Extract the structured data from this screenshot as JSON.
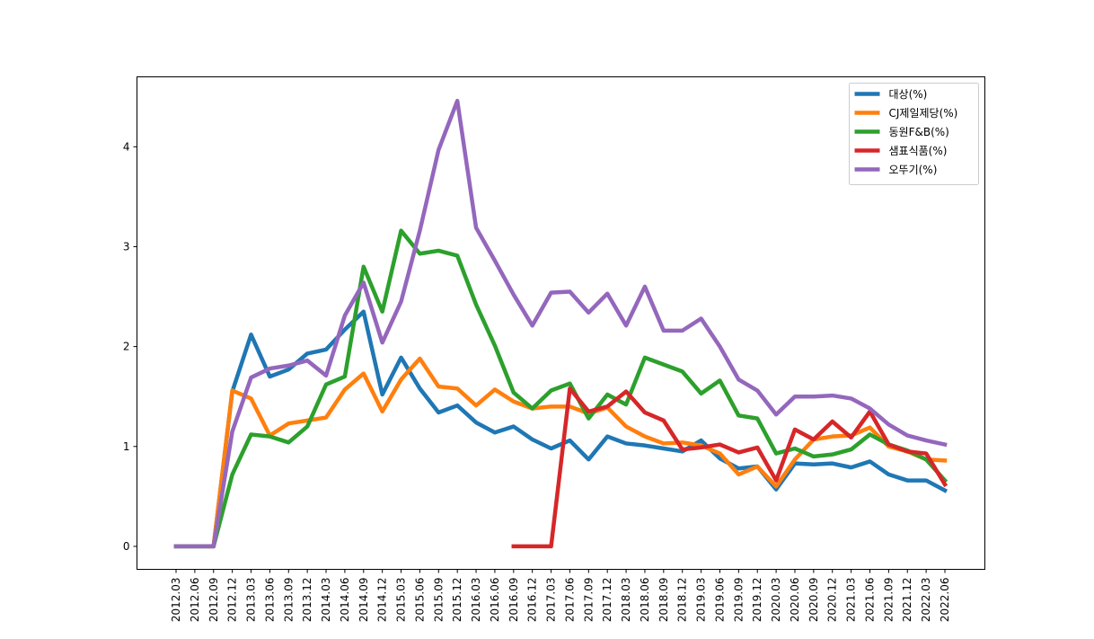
{
  "chart_data": {
    "type": "line",
    "title": "",
    "xlabel": "",
    "ylabel": "",
    "ylim": [
      -0.23,
      4.7
    ],
    "yticks": [
      0,
      1,
      2,
      3,
      4
    ],
    "grid": false,
    "legend_position": "top-right",
    "categories": [
      "2012.03",
      "2012.06",
      "2012.09",
      "2012.12",
      "2013.03",
      "2013.06",
      "2013.09",
      "2013.12",
      "2014.03",
      "2014.06",
      "2014.09",
      "2014.12",
      "2015.03",
      "2015.06",
      "2015.09",
      "2015.12",
      "2016.03",
      "2016.06",
      "2016.09",
      "2016.12",
      "2017.03",
      "2017.06",
      "2017.09",
      "2017.12",
      "2018.03",
      "2018.06",
      "2018.09",
      "2018.12",
      "2019.03",
      "2019.06",
      "2019.09",
      "2019.12",
      "2020.03",
      "2020.06",
      "2020.09",
      "2020.12",
      "2021.03",
      "2021.06",
      "2021.09",
      "2021.12",
      "2022.03",
      "2022.06"
    ],
    "series": [
      {
        "name": "대상(%)",
        "color": "#1f77b4",
        "values": [
          0,
          0,
          0,
          1.55,
          2.12,
          1.7,
          1.77,
          1.93,
          1.97,
          2.17,
          2.35,
          1.52,
          1.89,
          1.58,
          1.34,
          1.41,
          1.24,
          1.14,
          1.2,
          1.07,
          0.98,
          1.06,
          0.87,
          1.1,
          1.03,
          1.01,
          0.98,
          0.95,
          1.06,
          0.88,
          0.78,
          0.8,
          0.57,
          0.83,
          0.82,
          0.83,
          0.79,
          0.85,
          0.72,
          0.66,
          0.66,
          0.56
        ]
      },
      {
        "name": "CJ제일제당(%)",
        "color": "#ff7f0e",
        "values": [
          0,
          0,
          0,
          1.56,
          1.48,
          1.11,
          1.23,
          1.26,
          1.29,
          1.57,
          1.73,
          1.35,
          1.67,
          1.88,
          1.6,
          1.58,
          1.41,
          1.57,
          1.45,
          1.38,
          1.4,
          1.4,
          1.33,
          1.39,
          1.2,
          1.1,
          1.03,
          1.04,
          1.01,
          0.93,
          0.72,
          0.8,
          0.6,
          0.87,
          1.07,
          1.1,
          1.11,
          1.19,
          1.0,
          0.95,
          0.87,
          0.86
        ]
      },
      {
        "name": "동원F&B(%)",
        "color": "#2ca02c",
        "values": [
          0,
          0,
          0,
          0.72,
          1.12,
          1.1,
          1.04,
          1.2,
          1.62,
          1.7,
          2.8,
          2.35,
          3.16,
          2.93,
          2.96,
          2.91,
          2.42,
          2.01,
          1.54,
          1.38,
          1.56,
          1.63,
          1.28,
          1.52,
          1.42,
          1.89,
          1.82,
          1.75,
          1.53,
          1.66,
          1.31,
          1.28,
          0.93,
          0.98,
          0.9,
          0.92,
          0.97,
          1.12,
          1.02,
          0.96,
          0.87,
          0.66
        ]
      },
      {
        "name": "샘표식품(%)",
        "color": "#d62728",
        "values": [
          null,
          null,
          null,
          null,
          null,
          null,
          null,
          null,
          null,
          null,
          null,
          null,
          null,
          null,
          null,
          null,
          null,
          null,
          0,
          0,
          0,
          1.58,
          1.35,
          1.4,
          1.55,
          1.34,
          1.26,
          0.97,
          0.99,
          1.02,
          0.94,
          0.99,
          0.66,
          1.17,
          1.07,
          1.25,
          1.09,
          1.35,
          1.02,
          0.95,
          0.93,
          0.62
        ]
      },
      {
        "name": "오뚜기(%)",
        "color": "#9467bd",
        "values": [
          0,
          0,
          0,
          1.15,
          1.69,
          1.78,
          1.81,
          1.86,
          1.71,
          2.31,
          2.64,
          2.04,
          2.45,
          3.16,
          3.97,
          4.46,
          3.19,
          2.86,
          2.52,
          2.21,
          2.54,
          2.55,
          2.34,
          2.53,
          2.21,
          2.6,
          2.16,
          2.16,
          2.28,
          2.0,
          1.67,
          1.56,
          1.32,
          1.5,
          1.5,
          1.51,
          1.48,
          1.38,
          1.22,
          1.11,
          1.06,
          1.02
        ]
      }
    ]
  }
}
